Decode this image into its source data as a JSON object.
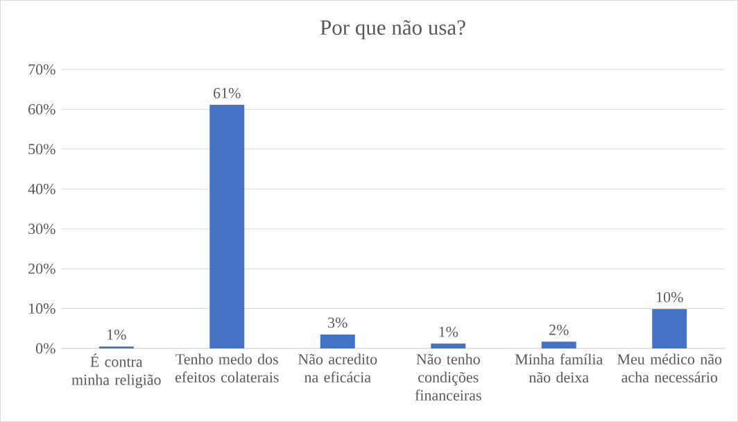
{
  "chart_data": {
    "type": "bar",
    "title": "Por que não usa?",
    "categories": [
      "É contra minha religião",
      "Tenho medo dos efeitos colaterais",
      "Não acredito na eficácia",
      "Não tenho condições financeiras",
      "Minha família não deixa",
      "Meu médico não acha necessário"
    ],
    "values": [
      0.5,
      61.1,
      3.5,
      1.2,
      1.7,
      9.9
    ],
    "value_labels": [
      "1%",
      "61%",
      "3%",
      "1%",
      "2%",
      "10%"
    ],
    "color": "#4472c4",
    "ylim": [
      0,
      70
    ],
    "yticks": [
      {
        "value": 0,
        "label": "0%"
      },
      {
        "value": 10,
        "label": "10%"
      },
      {
        "value": 20,
        "label": "20%"
      },
      {
        "value": 30,
        "label": "30%"
      },
      {
        "value": 40,
        "label": "40%"
      },
      {
        "value": 50,
        "label": "50%"
      },
      {
        "value": 60,
        "label": "60%"
      },
      {
        "value": 70,
        "label": "70%"
      }
    ],
    "grid": "y"
  }
}
